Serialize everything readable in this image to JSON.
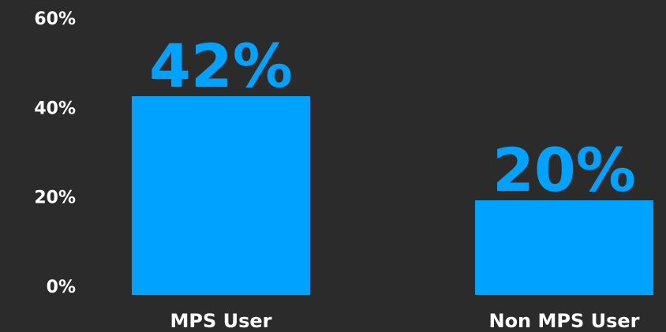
{
  "chart_data": {
    "type": "bar",
    "categories": [
      "MPS User",
      "Non MPS User"
    ],
    "values": [
      42,
      20
    ],
    "value_labels": [
      "42%",
      "20%"
    ],
    "color": "#00a2ff",
    "ylim": [
      0,
      60
    ],
    "yticks": [
      {
        "value": 0,
        "label": "0%"
      },
      {
        "value": 20,
        "label": "20%"
      },
      {
        "value": 40,
        "label": "40%"
      },
      {
        "value": 60,
        "label": "60%"
      }
    ],
    "grid": false
  }
}
